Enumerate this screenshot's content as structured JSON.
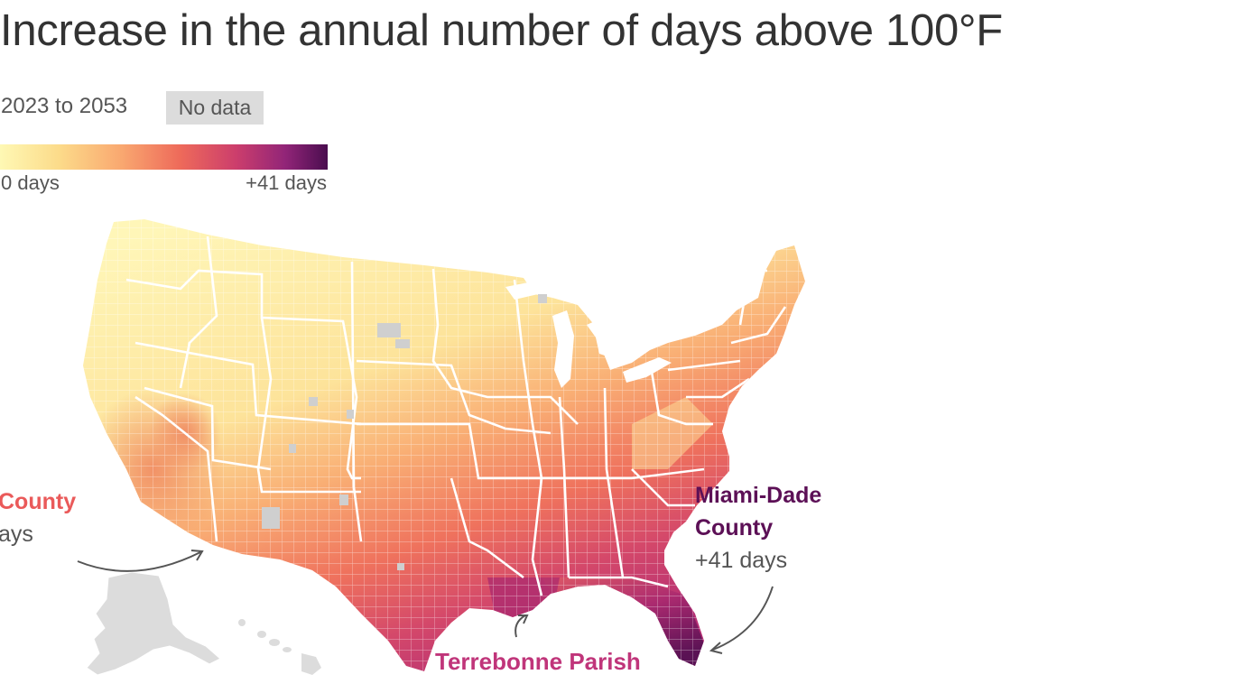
{
  "title": "Increase in the annual number of days above 100°F",
  "subtitle": "2023 to 2053",
  "legend": {
    "no_data_label": "No data",
    "min_label": "0 days",
    "max_label": "+41 days",
    "colors": [
      "#fef8b4",
      "#fcdb8a",
      "#f9a870",
      "#ee6a5a",
      "#cc3e6c",
      "#922578",
      "#4a0d4f"
    ],
    "no_data_color": "#dcdcdc"
  },
  "annotations": {
    "la_county": {
      "name": "County",
      "value": "ays"
    },
    "miami_dade": {
      "name_line1": "Miami-Dade",
      "name_line2": "County",
      "value": "+41 days"
    },
    "terrebonne": {
      "name": "Terrebonne Parish"
    }
  }
}
